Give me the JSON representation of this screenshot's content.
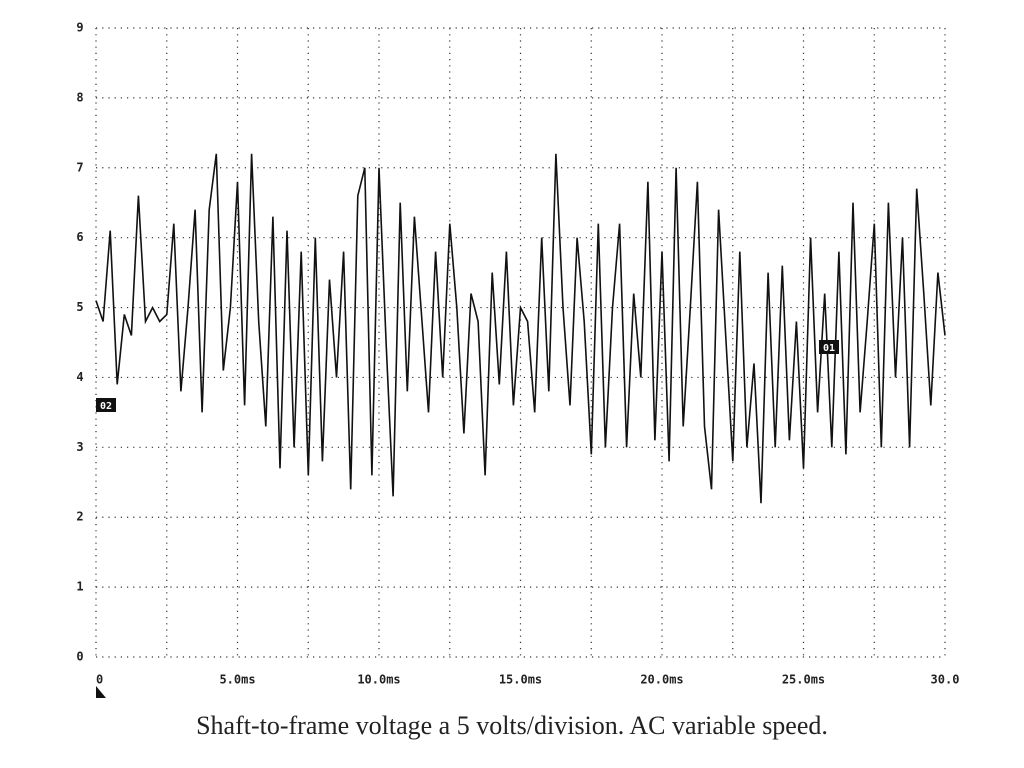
{
  "chart_data": {
    "type": "line",
    "title": "Shaft-to-frame voltage a 5 volts/division.  AC variable speed.",
    "x": [
      0,
      0.25,
      0.5,
      0.75,
      1,
      1.25,
      1.5,
      1.75,
      2,
      2.25,
      2.5,
      2.75,
      3,
      3.25,
      3.5,
      3.75,
      4,
      4.25,
      4.5,
      4.75,
      5,
      5.25,
      5.5,
      5.75,
      6,
      6.25,
      6.5,
      6.75,
      7,
      7.25,
      7.5,
      7.75,
      8,
      8.25,
      8.5,
      8.75,
      9,
      9.25,
      9.5,
      9.75,
      10,
      10.25,
      10.5,
      10.75,
      11,
      11.25,
      11.5,
      11.75,
      12,
      12.25,
      12.5,
      12.75,
      13,
      13.25,
      13.5,
      13.75,
      14,
      14.25,
      14.5,
      14.75,
      15,
      15.25,
      15.5,
      15.75,
      16,
      16.25,
      16.5,
      16.75,
      17,
      17.25,
      17.5,
      17.75,
      18,
      18.25,
      18.5,
      18.75,
      19,
      19.25,
      19.5,
      19.75,
      20,
      20.25,
      20.5,
      20.75,
      21,
      21.25,
      21.5,
      21.75,
      22,
      22.25,
      22.5,
      22.75,
      23,
      23.25,
      23.5,
      23.75,
      24,
      24.25,
      24.5,
      24.75,
      25,
      25.25,
      25.5,
      25.75,
      26,
      26.25,
      26.5,
      26.75,
      27,
      27.25,
      27.5,
      27.75,
      28,
      28.25,
      28.5,
      28.75,
      29,
      29.25,
      29.5,
      29.75,
      30
    ],
    "series": [
      {
        "name": "Shaft-to-frame voltage",
        "color": "#111111",
        "values": [
          5.1,
          4.8,
          6.1,
          3.9,
          4.9,
          4.6,
          6.6,
          4.8,
          5.0,
          4.8,
          4.9,
          6.2,
          3.8,
          5.0,
          6.4,
          3.5,
          6.4,
          7.2,
          4.1,
          5.0,
          6.8,
          3.6,
          7.2,
          4.8,
          3.3,
          6.3,
          2.7,
          6.1,
          3.0,
          5.8,
          2.6,
          6.0,
          2.8,
          5.4,
          4.0,
          5.8,
          2.4,
          6.6,
          7.0,
          2.6,
          7.0,
          4.5,
          2.3,
          6.5,
          3.8,
          6.3,
          4.9,
          3.5,
          5.8,
          4.0,
          6.2,
          5.0,
          3.2,
          5.2,
          4.8,
          2.6,
          5.5,
          3.9,
          5.8,
          3.6,
          5.0,
          4.8,
          3.5,
          6.0,
          3.8,
          7.2,
          5.0,
          3.6,
          6.0,
          4.8,
          2.9,
          6.2,
          3.0,
          5.0,
          6.2,
          3.0,
          5.2,
          4.0,
          6.8,
          3.1,
          5.8,
          2.8,
          7.0,
          3.3,
          5.0,
          6.8,
          3.3,
          2.4,
          6.4,
          4.6,
          2.8,
          5.8,
          3.0,
          4.2,
          2.2,
          5.5,
          3.0,
          5.6,
          3.1,
          4.8,
          2.7,
          6.0,
          3.5,
          5.2,
          3.0,
          5.8,
          2.9,
          6.5,
          3.5,
          4.8,
          6.2,
          3.0,
          6.5,
          4.0,
          6.0,
          3.0,
          6.7,
          5.2,
          3.6,
          5.5,
          4.6
        ]
      }
    ],
    "annotations": [
      "02",
      "01"
    ],
    "xlim": [
      0,
      30
    ],
    "xticks": [
      0,
      {
        "value": 5,
        "label": "5.0ms"
      },
      {
        "value": 10,
        "label": "10.0ms"
      },
      {
        "value": 15,
        "label": "15.0ms"
      },
      {
        "value": 20,
        "label": "20.0ms"
      },
      {
        "value": 25,
        "label": "25.0ms"
      },
      {
        "value": 30,
        "label": "30.0"
      }
    ],
    "ylim": [
      0,
      9
    ],
    "yticks": [
      0,
      1,
      2,
      3,
      4,
      5,
      6,
      7,
      8,
      9
    ],
    "grid": true
  }
}
